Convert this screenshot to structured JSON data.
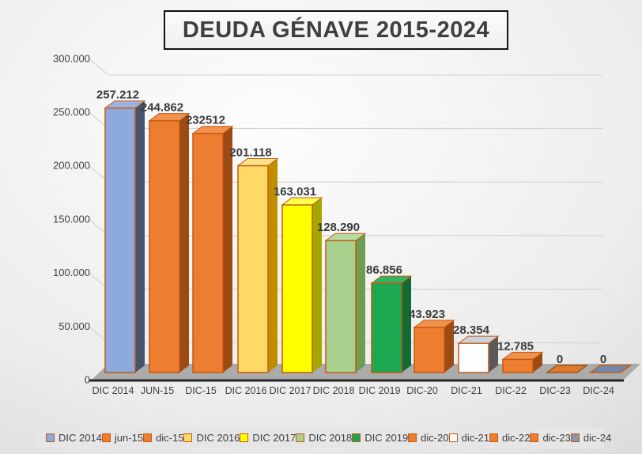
{
  "title": "DEUDA GÉNAVE 2015-2024",
  "chart_data": {
    "type": "bar",
    "view": "3d-column",
    "title": "DEUDA GÉNAVE 2015-2024",
    "xlabel": "",
    "ylabel": "",
    "grid": true,
    "legend_position": "bottom",
    "ylim": [
      0,
      300000
    ],
    "categories": [
      "DIC 2014",
      "JUN-15",
      "DIC-15",
      "DIC 2016",
      "DIC 2017",
      "DIC 2018",
      "DIC 2019",
      "DIC-20",
      "DIC-21",
      "DIC-22",
      "DIC-23",
      "DIC-24"
    ],
    "values": [
      257212,
      244862,
      232512,
      201118,
      163031,
      128290,
      86856,
      43923,
      28354,
      12785,
      0,
      0
    ],
    "data_labels": [
      "257.212",
      "244.862",
      "232512",
      "201.118",
      "163.031",
      "128.290",
      "86.856",
      "43.923",
      "28.354",
      "12.785",
      "0",
      "0"
    ],
    "y_ticks": [
      "300.000",
      "250.000",
      "200.000",
      "150.000",
      "100.000",
      "50.000",
      "0"
    ],
    "y_tick_values": [
      300000,
      250000,
      200000,
      150000,
      100000,
      50000,
      0
    ],
    "bar_colors": [
      {
        "front": "#8EA9DB",
        "side": "#44546A",
        "top": "#9DB2DE",
        "border": "#C55A11"
      },
      {
        "front": "#ED7D31",
        "side": "#9C4C13",
        "top": "#F0914C",
        "border": "#C55A11"
      },
      {
        "front": "#ED7D31",
        "side": "#9C4C13",
        "top": "#F0914C",
        "border": "#C55A11"
      },
      {
        "front": "#FFD966",
        "side": "#BF8F00",
        "top": "#FFE289",
        "border": "#C55A11"
      },
      {
        "front": "#FFFF00",
        "side": "#A6A600",
        "top": "#FFFF4D",
        "border": "#C55A11"
      },
      {
        "front": "#A9D18E",
        "side": "#6E9C53",
        "top": "#B8DBA1",
        "border": "#C55A11"
      },
      {
        "front": "#1CA750",
        "side": "#136B34",
        "top": "#2FB562",
        "border": "#C55A11"
      },
      {
        "front": "#ED7D31",
        "side": "#9C4C13",
        "top": "#F0914C",
        "border": "#C55A11"
      },
      {
        "front": "#FBFDFF",
        "side": "#595959",
        "top": "#CDD2DA",
        "border": "#C55A11"
      },
      {
        "front": "#ED7D31",
        "side": "#9C4C13",
        "top": "#F0914C",
        "border": "#C55A11"
      },
      {
        "front": "#DD7A30",
        "side": "#DD7A30",
        "top": "#DD7A30",
        "border": "#A5520F"
      },
      {
        "front": "#7388AE",
        "side": "#7388AE",
        "top": "#7388AE",
        "border": "#C55A11"
      }
    ],
    "legend": [
      {
        "label": "DIC 2014",
        "fill": "#8EA9DB",
        "border": "#C55A11"
      },
      {
        "label": "jun-15",
        "fill": "#ED7D31",
        "border": "#C55A11"
      },
      {
        "label": "dic-15",
        "fill": "#ED7D31",
        "border": "#C55A11"
      },
      {
        "label": "DIC 2016",
        "fill": "#FFD966",
        "border": "#C55A11"
      },
      {
        "label": "DIC 2017",
        "fill": "#FFFF00",
        "border": "#C55A11"
      },
      {
        "label": "DIC 2018",
        "fill": "#A9D18E",
        "border": "#C55A11"
      },
      {
        "label": "DIC 2019",
        "fill": "#1CA750",
        "border": "#C55A11"
      },
      {
        "label": "dic-20",
        "fill": "#ED7D31",
        "border": "#C55A11"
      },
      {
        "label": "dic-21",
        "fill": "#FFFFFF",
        "border": "#C55A11"
      },
      {
        "label": "dic-22",
        "fill": "#ED7D31",
        "border": "#C55A11"
      },
      {
        "label": "dic-23",
        "fill": "#ED7D31",
        "border": "#C55A11"
      },
      {
        "label": "dic-24",
        "fill": "#8496B0",
        "border": "#C55A11"
      }
    ],
    "colors": {
      "gridline": "#d4d4d4",
      "axis_line": "#262626",
      "floor": "#ABABAB",
      "tick_text": "#3f3f3f",
      "data_label_text": "#3b3b3b",
      "title_text": "#3f3f3f"
    }
  }
}
